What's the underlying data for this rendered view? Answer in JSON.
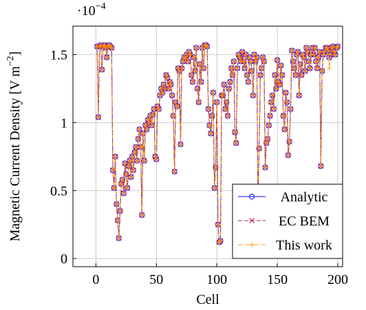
{
  "chart_data": {
    "type": "line",
    "y_multiplier": {
      "base": "·10",
      "exponent": "−4"
    },
    "xlabel": "Cell",
    "ylabel": {
      "text": "Magnetic Current Density [V m",
      "exponent": "−2",
      "end": "]"
    },
    "xlim": [
      -19,
      204
    ],
    "ylim": [
      -0.06,
      1.71
    ],
    "xticks": [
      0,
      50,
      100,
      150,
      200
    ],
    "yticks": [
      0,
      0.5,
      1,
      1.5
    ],
    "grid": true,
    "legend": "lower right",
    "x": [
      1,
      2,
      3,
      4,
      5,
      6,
      7,
      8,
      9,
      10,
      11,
      12,
      13,
      14,
      15,
      16,
      17,
      18,
      19,
      20,
      21,
      22,
      23,
      24,
      25,
      26,
      27,
      28,
      29,
      30,
      31,
      32,
      33,
      34,
      35,
      36,
      37,
      38,
      39,
      40,
      41,
      42,
      43,
      44,
      45,
      46,
      47,
      48,
      49,
      50,
      51,
      52,
      53,
      54,
      55,
      56,
      57,
      58,
      59,
      60,
      61,
      62,
      63,
      64,
      65,
      66,
      67,
      68,
      69,
      70,
      71,
      72,
      73,
      74,
      75,
      76,
      77,
      78,
      79,
      80,
      81,
      82,
      83,
      84,
      85,
      86,
      87,
      88,
      89,
      90,
      91,
      92,
      93,
      94,
      95,
      96,
      97,
      98,
      99,
      100,
      101,
      102,
      103,
      104,
      105,
      106,
      107,
      108,
      109,
      110,
      111,
      112,
      113,
      114,
      115,
      116,
      117,
      118,
      119,
      120,
      121,
      122,
      123,
      124,
      125,
      126,
      127,
      128,
      129,
      130,
      131,
      132,
      133,
      134,
      135,
      136,
      137,
      138,
      139,
      140,
      141,
      142,
      143,
      144,
      145,
      146,
      147,
      148,
      149,
      150,
      151,
      152,
      153,
      154,
      155,
      156,
      157,
      158,
      159,
      160,
      161,
      162,
      163,
      164,
      165,
      166,
      167,
      168,
      169,
      170,
      171,
      172,
      173,
      174,
      175,
      176,
      177,
      178,
      179,
      180,
      181,
      182,
      183,
      184,
      185,
      186,
      187,
      188,
      189,
      190,
      191,
      192,
      193,
      194,
      195,
      196,
      197,
      198,
      199,
      200
    ],
    "series": [
      {
        "name": "Analytic",
        "color": "#0000ff",
        "marker": "circle",
        "dash": "solid",
        "values": [
          1.56,
          1.04,
          1.56,
          1.57,
          1.39,
          1.56,
          1.57,
          1.55,
          1.48,
          1.56,
          1.57,
          1.56,
          1.55,
          0.65,
          0.52,
          0.75,
          0.4,
          0.28,
          0.15,
          0.35,
          0.55,
          0.58,
          0.48,
          0.7,
          0.62,
          0.52,
          0.68,
          0.72,
          0.6,
          0.75,
          0.65,
          0.78,
          0.82,
          0.72,
          0.88,
          0.95,
          0.82,
          0.32,
          0.92,
          0.72,
          0.98,
          0.95,
          1.02,
          1.0,
          1.05,
          0.98,
          1.06,
          1.1,
          0.75,
          0.73,
          1.12,
          1.1,
          1.2,
          1.25,
          1.22,
          1.28,
          1.25,
          1.35,
          1.33,
          1.25,
          1.3,
          1.28,
          1.2,
          1.05,
          0.64,
          1.15,
          1.12,
          1.4,
          1.38,
          0.84,
          1.4,
          1.45,
          1.48,
          1.47,
          1.5,
          1.45,
          1.52,
          1.5,
          1.35,
          1.3,
          1.48,
          1.38,
          1.55,
          1.25,
          1.15,
          1.43,
          1.3,
          1.55,
          1.4,
          1.57,
          1.57,
          1.56,
          1.1,
          0.98,
          0.92,
          1.05,
          1.22,
          0.52,
          0.67,
          1.15,
          0.25,
          0.12,
          0.13,
          1.2,
          1.2,
          1.28,
          1.1,
          1.15,
          1.05,
          1.25,
          1.3,
          1.4,
          1.35,
          1.45,
          0.93,
          0.85,
          1.4,
          1.5,
          1.48,
          1.45,
          1.52,
          1.45,
          1.4,
          1.5,
          1.35,
          1.3,
          1.48,
          1.45,
          1.38,
          1.2,
          1.5,
          1.45,
          1.48,
          0.45,
          0.81,
          1.35,
          1.4,
          1.48,
          1.45,
          0.67,
          0.85,
          0.88,
          0.98,
          1.05,
          1.15,
          1.2,
          1.1,
          1.35,
          1.25,
          1.46,
          1.3,
          1.28,
          1.42,
          1.35,
          1.05,
          0.95,
          1.22,
          1.15,
          0.76,
          0.86,
          1.1,
          1.53,
          1.45,
          1.4,
          1.35,
          1.5,
          1.52,
          1.2,
          1.43,
          1.35,
          1.5,
          1.48,
          1.38,
          1.55,
          1.52,
          1.45,
          1.4,
          1.5,
          1.55,
          1.5,
          1.55,
          1.45,
          1.4,
          1.48,
          1.52,
          0.68,
          1.38,
          1.5,
          1.52,
          1.55,
          1.55,
          1.53,
          1.48,
          1.5,
          1.55,
          1.56,
          1.52,
          1.5,
          1.55,
          1.56
        ]
      },
      {
        "name": "EC BEM",
        "color": "#c02050",
        "marker": "cross",
        "dash": "dashed",
        "values": [
          1.56,
          1.04,
          1.56,
          1.57,
          1.39,
          1.56,
          1.57,
          1.55,
          1.48,
          1.56,
          1.57,
          1.56,
          1.55,
          0.65,
          0.52,
          0.75,
          0.4,
          0.28,
          0.15,
          0.35,
          0.55,
          0.58,
          0.48,
          0.7,
          0.62,
          0.52,
          0.68,
          0.72,
          0.6,
          0.75,
          0.65,
          0.78,
          0.82,
          0.72,
          0.88,
          0.95,
          0.82,
          0.32,
          0.92,
          0.72,
          0.98,
          0.95,
          1.02,
          1.0,
          1.05,
          0.98,
          1.06,
          1.1,
          0.75,
          0.73,
          1.12,
          1.1,
          1.2,
          1.25,
          1.22,
          1.28,
          1.25,
          1.35,
          1.33,
          1.25,
          1.3,
          1.28,
          1.2,
          1.05,
          0.64,
          1.15,
          1.12,
          1.4,
          1.38,
          0.84,
          1.4,
          1.45,
          1.48,
          1.47,
          1.5,
          1.45,
          1.52,
          1.5,
          1.35,
          1.3,
          1.48,
          1.38,
          1.55,
          1.25,
          1.15,
          1.43,
          1.3,
          1.55,
          1.4,
          1.57,
          1.57,
          1.56,
          1.1,
          0.98,
          0.92,
          1.05,
          1.22,
          0.52,
          0.67,
          1.15,
          0.25,
          0.12,
          0.13,
          1.2,
          1.2,
          1.28,
          1.1,
          1.15,
          1.05,
          1.25,
          1.3,
          1.4,
          1.35,
          1.45,
          0.93,
          0.85,
          1.4,
          1.5,
          1.48,
          1.45,
          1.52,
          1.45,
          1.4,
          1.5,
          1.35,
          1.3,
          1.48,
          1.45,
          1.38,
          1.2,
          1.5,
          1.45,
          1.48,
          0.45,
          0.81,
          1.35,
          1.4,
          1.48,
          1.45,
          0.67,
          0.85,
          0.88,
          0.98,
          1.05,
          1.15,
          1.2,
          1.1,
          1.35,
          1.25,
          1.46,
          1.3,
          1.28,
          1.42,
          1.35,
          1.05,
          0.95,
          1.22,
          1.15,
          0.76,
          0.86,
          1.1,
          1.53,
          1.45,
          1.4,
          1.35,
          1.5,
          1.52,
          1.2,
          1.43,
          1.35,
          1.5,
          1.48,
          1.38,
          1.55,
          1.52,
          1.45,
          1.4,
          1.5,
          1.55,
          1.5,
          1.55,
          1.45,
          1.4,
          1.48,
          1.52,
          0.68,
          1.38,
          1.5,
          1.52,
          1.55,
          1.55,
          1.53,
          1.48,
          1.5,
          1.55,
          1.56,
          1.52,
          1.5,
          1.55,
          1.56
        ]
      },
      {
        "name": "This work",
        "color": "#ff9900",
        "marker": "plus",
        "dash": "dashdot",
        "values": [
          1.56,
          1.04,
          1.56,
          1.57,
          1.39,
          1.56,
          1.57,
          1.55,
          1.48,
          1.56,
          1.57,
          1.56,
          1.55,
          0.65,
          0.52,
          0.75,
          0.4,
          0.28,
          0.15,
          0.35,
          0.55,
          0.58,
          0.48,
          0.7,
          0.62,
          0.52,
          0.68,
          0.72,
          0.6,
          0.75,
          0.65,
          0.78,
          0.82,
          0.72,
          0.88,
          0.95,
          0.82,
          0.32,
          0.92,
          0.72,
          0.98,
          0.95,
          1.02,
          1.0,
          1.05,
          0.98,
          1.06,
          1.1,
          0.75,
          0.73,
          1.12,
          1.1,
          1.2,
          1.25,
          1.22,
          1.28,
          1.25,
          1.35,
          1.33,
          1.25,
          1.3,
          1.28,
          1.2,
          1.05,
          0.64,
          1.15,
          1.12,
          1.4,
          1.38,
          0.84,
          1.4,
          1.45,
          1.48,
          1.47,
          1.5,
          1.45,
          1.52,
          1.5,
          1.35,
          1.3,
          1.48,
          1.38,
          1.55,
          1.25,
          1.15,
          1.43,
          1.3,
          1.55,
          1.4,
          1.57,
          1.57,
          1.56,
          1.1,
          0.98,
          0.92,
          1.05,
          1.22,
          0.52,
          0.67,
          1.15,
          0.25,
          0.12,
          0.13,
          1.2,
          1.2,
          1.28,
          1.1,
          1.15,
          1.05,
          1.25,
          1.3,
          1.4,
          1.35,
          1.45,
          0.93,
          0.85,
          1.4,
          1.5,
          1.48,
          1.45,
          1.52,
          1.45,
          1.4,
          1.5,
          1.35,
          1.3,
          1.48,
          1.45,
          1.38,
          1.2,
          1.5,
          1.45,
          1.48,
          0.45,
          0.81,
          1.35,
          1.4,
          1.48,
          1.45,
          0.67,
          0.85,
          0.88,
          0.98,
          1.05,
          1.15,
          1.2,
          1.1,
          1.35,
          1.25,
          1.46,
          1.3,
          1.28,
          1.42,
          1.35,
          1.05,
          0.95,
          1.22,
          1.15,
          0.76,
          0.86,
          1.1,
          1.53,
          1.45,
          1.4,
          1.35,
          1.5,
          1.52,
          1.2,
          1.43,
          1.35,
          1.5,
          1.48,
          1.38,
          1.55,
          1.52,
          1.45,
          1.4,
          1.5,
          1.55,
          1.5,
          1.55,
          1.45,
          1.4,
          1.48,
          1.52,
          0.68,
          1.38,
          1.5,
          1.52,
          1.55,
          1.55,
          1.53,
          1.4,
          1.5,
          1.55,
          1.56,
          1.52,
          1.5,
          1.55,
          1.56
        ]
      }
    ]
  }
}
